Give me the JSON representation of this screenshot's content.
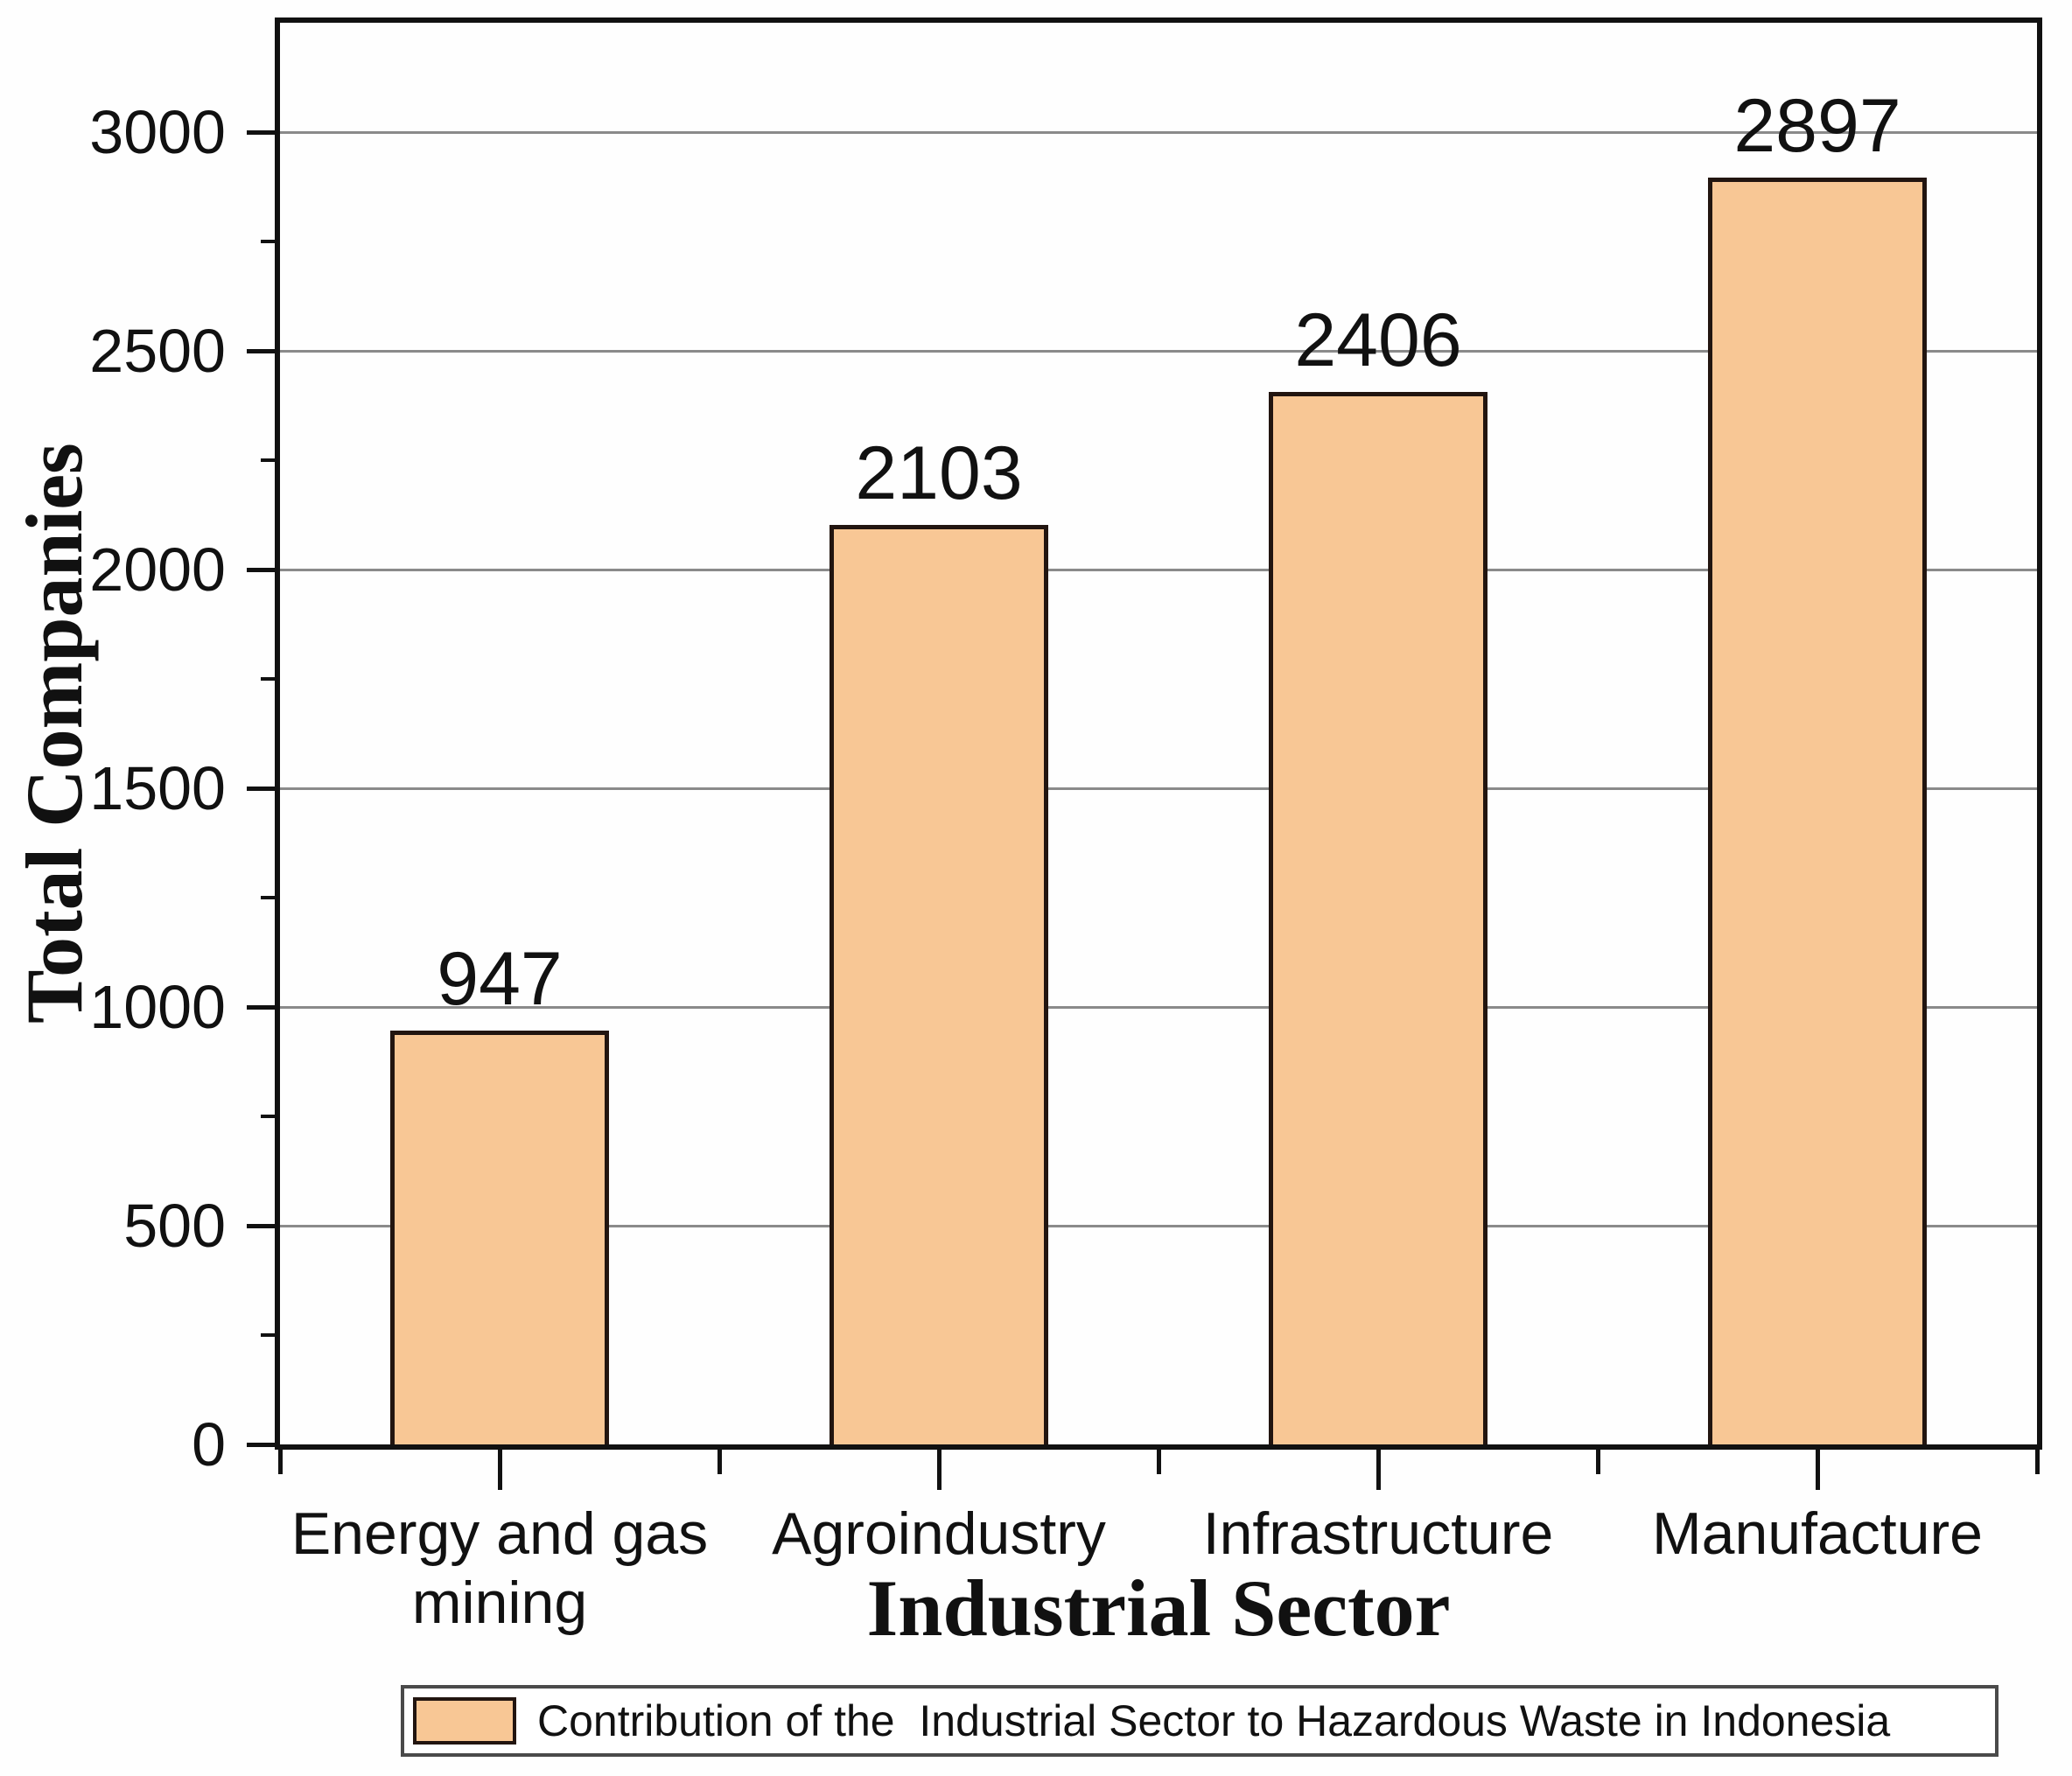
{
  "chart_data": {
    "type": "bar",
    "title": "",
    "categories": [
      "Energy and gas\nmining",
      "Agroindustry",
      "Infrastructure",
      "Manufacture"
    ],
    "values": [
      947,
      2103,
      2406,
      2897
    ],
    "xlabel": "Industrial Sector",
    "ylabel": "Total Companies",
    "ylim": [
      0,
      3250
    ],
    "yticks": [
      0,
      500,
      1000,
      1500,
      2000,
      2500,
      3000
    ],
    "yminor_step": 250,
    "grid": true,
    "gridline_values": [
      500,
      1000,
      1500,
      2000,
      2500,
      3000
    ],
    "legend": {
      "position": "bottom",
      "entries": [
        {
          "label": "Contribution of the  Industrial Sector to Hazardous Waste in Indonesia",
          "swatch_color": "#F8C795"
        }
      ]
    },
    "colors": {
      "bar_fill": "#F8C795",
      "bar_border": "#221510",
      "gridline": "#8a8a8a",
      "axis": "#111111",
      "text": "#111111",
      "legend_border": "#4a4a4a"
    }
  }
}
